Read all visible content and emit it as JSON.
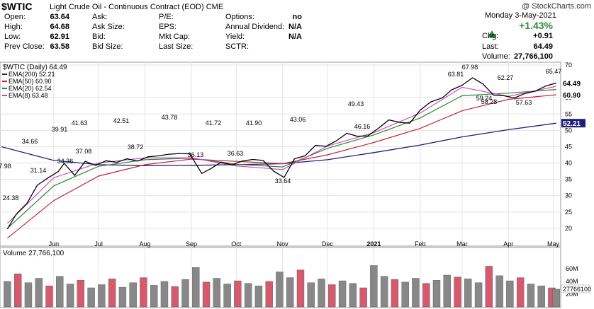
{
  "header": {
    "symbol": "$WTIC",
    "description": "Light Crude Oil - Continuous Contract (EOD)",
    "exchange": "CME",
    "copyright": "@ StockCharts.com"
  },
  "quote": {
    "col1": [
      [
        "Open:",
        "63.64"
      ],
      [
        "High:",
        "64.68"
      ],
      [
        "Low:",
        "62.91"
      ],
      [
        "Prev Close:",
        "63.58"
      ]
    ],
    "col2": [
      "Ask:",
      "Ask Size:",
      "Bid:",
      "Bid Size:"
    ],
    "col3": [
      "P/E:",
      "EPS:",
      "Mkt Cap:",
      "Last Size:"
    ],
    "col4": [
      [
        "Options:",
        "no"
      ],
      [
        "Annual Dividend:",
        "N/A"
      ],
      [
        "Yield:",
        "N/A"
      ],
      [
        "SCTR:",
        ""
      ]
    ],
    "date": "Monday  3-May-2021",
    "pct": "+1.43%",
    "chg_label": "Chg:",
    "chg": "+0.91",
    "last_label": "Last:",
    "last": "64.49",
    "volume_label": "Volume:",
    "volume": "27,766,100"
  },
  "colors": {
    "up": "#2e8b3e",
    "down": "#c0233c",
    "ema200": "#1f1f7a",
    "ema50": "#c0233c",
    "ema20": "#2a8a2a",
    "ema8": "#d33ad0",
    "vol_up": "#888888",
    "vol_down": "#d65a6e",
    "grid": "#e3e3e3"
  },
  "chart_data": {
    "type": "line",
    "price_label": "$WTIC (Daily) 64.49",
    "legend": [
      {
        "label": "EMA(200) 52.21",
        "color": "#1f1f7a"
      },
      {
        "label": "EMA(50) 60.90",
        "color": "#c0233c"
      },
      {
        "label": "EMA(20) 62.54",
        "color": "#2a8a2a"
      },
      {
        "label": "EMA(8) 63.48",
        "color": "#d33ad0"
      }
    ],
    "y_ticks": [
      20,
      25,
      30,
      35,
      40,
      45,
      50,
      55,
      60,
      70
    ],
    "y_range": [
      15,
      70
    ],
    "x_labels": [
      "Jun",
      "Jul",
      "Aug",
      "Sep",
      "Oct",
      "Nov",
      "Dec",
      "2021",
      "Feb",
      "Mar",
      "Apr",
      "May"
    ],
    "annotations": [
      "7.98",
      "24.38",
      "34.66",
      "31.14",
      "39.91",
      "34.36",
      "41.63",
      "37.08",
      "42.51",
      "38.72",
      "43.78",
      "36.13",
      "41.72",
      "36.63",
      "41.90",
      "33.64",
      "43.06",
      "49.43",
      "46.16",
      "63.81",
      "67.98",
      "59.24",
      "62.27",
      "58.28",
      "57.63",
      "65.47"
    ],
    "price_series": [
      {
        "d": "2020-05-01",
        "v": 19.8
      },
      {
        "d": "2020-05-07",
        "v": 24.4
      },
      {
        "d": "2020-05-14",
        "v": 27.6
      },
      {
        "d": "2020-05-21",
        "v": 33.2
      },
      {
        "d": "2020-05-28",
        "v": 35.4
      },
      {
        "d": "2020-06-04",
        "v": 37.4
      },
      {
        "d": "2020-06-08",
        "v": 39.9
      },
      {
        "d": "2020-06-15",
        "v": 36.2
      },
      {
        "d": "2020-06-22",
        "v": 40.5
      },
      {
        "d": "2020-06-29",
        "v": 39.3
      },
      {
        "d": "2020-07-06",
        "v": 40.7
      },
      {
        "d": "2020-07-13",
        "v": 40.2
      },
      {
        "d": "2020-07-20",
        "v": 41.3
      },
      {
        "d": "2020-07-27",
        "v": 40.6
      },
      {
        "d": "2020-08-03",
        "v": 41.9
      },
      {
        "d": "2020-08-10",
        "v": 42.2
      },
      {
        "d": "2020-08-17",
        "v": 42.7
      },
      {
        "d": "2020-08-24",
        "v": 42.9
      },
      {
        "d": "2020-08-31",
        "v": 42.8
      },
      {
        "d": "2020-09-08",
        "v": 36.8
      },
      {
        "d": "2020-09-14",
        "v": 38.3
      },
      {
        "d": "2020-09-21",
        "v": 40.3
      },
      {
        "d": "2020-09-28",
        "v": 39.4
      },
      {
        "d": "2020-10-05",
        "v": 40.6
      },
      {
        "d": "2020-10-12",
        "v": 41.1
      },
      {
        "d": "2020-10-19",
        "v": 40.8
      },
      {
        "d": "2020-10-26",
        "v": 37.5
      },
      {
        "d": "2020-11-02",
        "v": 35.6
      },
      {
        "d": "2020-11-09",
        "v": 41.3
      },
      {
        "d": "2020-11-16",
        "v": 42.2
      },
      {
        "d": "2020-11-23",
        "v": 45.4
      },
      {
        "d": "2020-11-30",
        "v": 45.1
      },
      {
        "d": "2020-12-07",
        "v": 46.8
      },
      {
        "d": "2020-12-14",
        "v": 49.1
      },
      {
        "d": "2020-12-21",
        "v": 48.2
      },
      {
        "d": "2020-12-28",
        "v": 48.3
      },
      {
        "d": "2021-01-04",
        "v": 50.6
      },
      {
        "d": "2021-01-11",
        "v": 53.2
      },
      {
        "d": "2021-01-19",
        "v": 52.4
      },
      {
        "d": "2021-01-25",
        "v": 52.2
      },
      {
        "d": "2021-02-01",
        "v": 56.2
      },
      {
        "d": "2021-02-08",
        "v": 58.7
      },
      {
        "d": "2021-02-16",
        "v": 60.0
      },
      {
        "d": "2021-02-22",
        "v": 62.4
      },
      {
        "d": "2021-03-01",
        "v": 63.8
      },
      {
        "d": "2021-03-08",
        "v": 66.1
      },
      {
        "d": "2021-03-15",
        "v": 64.2
      },
      {
        "d": "2021-03-22",
        "v": 60.8
      },
      {
        "d": "2021-03-29",
        "v": 60.6
      },
      {
        "d": "2021-04-05",
        "v": 59.9
      },
      {
        "d": "2021-04-12",
        "v": 61.3
      },
      {
        "d": "2021-04-19",
        "v": 62.0
      },
      {
        "d": "2021-04-26",
        "v": 63.6
      },
      {
        "d": "2021-05-03",
        "v": 64.49
      }
    ],
    "ema200": [
      {
        "d": "2020-04-27",
        "v": 45.0
      },
      {
        "d": "2020-06-01",
        "v": 40.8
      },
      {
        "d": "2020-07-01",
        "v": 39.5
      },
      {
        "d": "2020-08-01",
        "v": 39.2
      },
      {
        "d": "2020-09-01",
        "v": 39.3
      },
      {
        "d": "2020-10-01",
        "v": 39.5
      },
      {
        "d": "2020-11-01",
        "v": 39.8
      },
      {
        "d": "2020-12-01",
        "v": 41.0
      },
      {
        "d": "2021-01-01",
        "v": 43.2
      },
      {
        "d": "2021-02-01",
        "v": 45.5
      },
      {
        "d": "2021-03-01",
        "v": 48.0
      },
      {
        "d": "2021-04-01",
        "v": 50.2
      },
      {
        "d": "2021-05-03",
        "v": 52.21
      }
    ],
    "ema50": [
      {
        "d": "2020-05-01",
        "v": 17.0
      },
      {
        "d": "2020-06-01",
        "v": 28.5
      },
      {
        "d": "2020-07-01",
        "v": 36.0
      },
      {
        "d": "2020-08-01",
        "v": 39.5
      },
      {
        "d": "2020-09-01",
        "v": 41.2
      },
      {
        "d": "2020-10-01",
        "v": 40.5
      },
      {
        "d": "2020-11-01",
        "v": 39.8
      },
      {
        "d": "2020-12-01",
        "v": 42.5
      },
      {
        "d": "2021-01-01",
        "v": 46.3
      },
      {
        "d": "2021-02-01",
        "v": 50.6
      },
      {
        "d": "2021-03-01",
        "v": 56.0
      },
      {
        "d": "2021-04-01",
        "v": 59.5
      },
      {
        "d": "2021-05-03",
        "v": 60.9
      }
    ],
    "ema20": [
      {
        "d": "2020-05-01",
        "v": 20.0
      },
      {
        "d": "2020-06-01",
        "v": 33.0
      },
      {
        "d": "2020-07-01",
        "v": 39.0
      },
      {
        "d": "2020-08-01",
        "v": 41.0
      },
      {
        "d": "2020-09-01",
        "v": 41.5
      },
      {
        "d": "2020-10-01",
        "v": 39.6
      },
      {
        "d": "2020-11-01",
        "v": 38.8
      },
      {
        "d": "2020-12-01",
        "v": 44.5
      },
      {
        "d": "2021-01-01",
        "v": 48.6
      },
      {
        "d": "2021-02-01",
        "v": 53.8
      },
      {
        "d": "2021-03-01",
        "v": 60.6
      },
      {
        "d": "2021-04-01",
        "v": 61.4
      },
      {
        "d": "2021-05-03",
        "v": 62.54
      }
    ],
    "ema8": [
      {
        "d": "2020-05-01",
        "v": 21.5
      },
      {
        "d": "2020-06-01",
        "v": 35.5
      },
      {
        "d": "2020-07-01",
        "v": 40.0
      },
      {
        "d": "2020-08-01",
        "v": 41.6
      },
      {
        "d": "2020-09-01",
        "v": 41.6
      },
      {
        "d": "2020-10-01",
        "v": 39.1
      },
      {
        "d": "2020-11-01",
        "v": 38.0
      },
      {
        "d": "2020-12-01",
        "v": 45.2
      },
      {
        "d": "2021-01-01",
        "v": 49.3
      },
      {
        "d": "2021-02-01",
        "v": 55.3
      },
      {
        "d": "2021-03-01",
        "v": 63.2
      },
      {
        "d": "2021-04-01",
        "v": 60.4
      },
      {
        "d": "2021-05-03",
        "v": 63.48
      }
    ],
    "last_price": 64.49,
    "ema50_last": 60.9,
    "ema200_last": 52.21,
    "volume_label": "Volume 27,766,100",
    "volume_ticks": [
      "60M",
      "40M",
      "20M"
    ],
    "volume_last_label": "27766100",
    "volume_range": [
      0,
      80
    ],
    "volume_series": [
      {
        "d": "2020-05-01",
        "v": 40
      },
      {
        "d": "2020-05-08",
        "v": 52
      },
      {
        "d": "2020-05-15",
        "v": 38
      },
      {
        "d": "2020-05-22",
        "v": 45
      },
      {
        "d": "2020-05-29",
        "v": 33
      },
      {
        "d": "2020-06-05",
        "v": 48
      },
      {
        "d": "2020-06-12",
        "v": 36
      },
      {
        "d": "2020-06-19",
        "v": 42
      },
      {
        "d": "2020-06-26",
        "v": 30
      },
      {
        "d": "2020-07-03",
        "v": 35
      },
      {
        "d": "2020-07-10",
        "v": 44
      },
      {
        "d": "2020-07-17",
        "v": 31
      },
      {
        "d": "2020-07-24",
        "v": 38
      },
      {
        "d": "2020-07-31",
        "v": 46
      },
      {
        "d": "2020-08-07",
        "v": 34
      },
      {
        "d": "2020-08-14",
        "v": 40
      },
      {
        "d": "2020-08-21",
        "v": 32
      },
      {
        "d": "2020-08-28",
        "v": 43
      },
      {
        "d": "2020-09-04",
        "v": 62
      },
      {
        "d": "2020-09-11",
        "v": 39
      },
      {
        "d": "2020-09-18",
        "v": 45
      },
      {
        "d": "2020-09-25",
        "v": 36
      },
      {
        "d": "2020-10-02",
        "v": 41
      },
      {
        "d": "2020-10-09",
        "v": 37
      },
      {
        "d": "2020-10-16",
        "v": 33
      },
      {
        "d": "2020-10-23",
        "v": 40
      },
      {
        "d": "2020-10-30",
        "v": 55
      },
      {
        "d": "2020-11-06",
        "v": 46
      },
      {
        "d": "2020-11-13",
        "v": 58
      },
      {
        "d": "2020-11-20",
        "v": 38
      },
      {
        "d": "2020-11-27",
        "v": 44
      },
      {
        "d": "2020-12-04",
        "v": 35
      },
      {
        "d": "2020-12-11",
        "v": 41
      },
      {
        "d": "2020-12-18",
        "v": 37
      },
      {
        "d": "2020-12-25",
        "v": 30
      },
      {
        "d": "2021-01-01",
        "v": 65
      },
      {
        "d": "2021-01-08",
        "v": 48
      },
      {
        "d": "2021-01-15",
        "v": 43
      },
      {
        "d": "2021-01-22",
        "v": 39
      },
      {
        "d": "2021-01-29",
        "v": 45
      },
      {
        "d": "2021-02-05",
        "v": 37
      },
      {
        "d": "2021-02-12",
        "v": 42
      },
      {
        "d": "2021-02-19",
        "v": 50
      },
      {
        "d": "2021-02-26",
        "v": 47
      },
      {
        "d": "2021-03-05",
        "v": 44
      },
      {
        "d": "2021-03-12",
        "v": 38
      },
      {
        "d": "2021-03-19",
        "v": 64
      },
      {
        "d": "2021-03-26",
        "v": 49
      },
      {
        "d": "2021-04-02",
        "v": 41
      },
      {
        "d": "2021-04-09",
        "v": 46
      },
      {
        "d": "2021-04-16",
        "v": 36
      },
      {
        "d": "2021-04-23",
        "v": 33
      },
      {
        "d": "2021-04-30",
        "v": 30
      },
      {
        "d": "2021-05-03",
        "v": 27.8
      }
    ]
  }
}
